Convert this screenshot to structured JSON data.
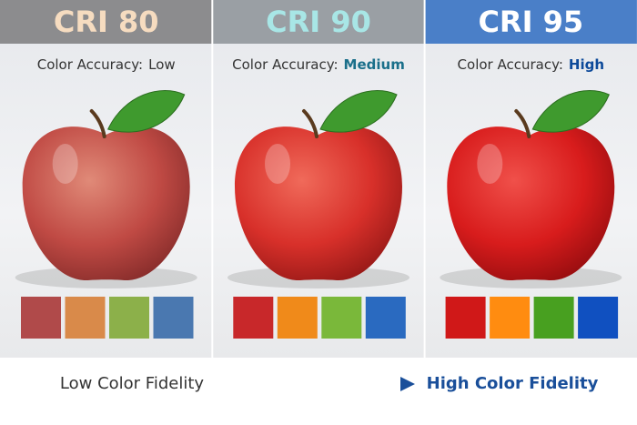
{
  "panels": [
    {
      "title": "CRI 80",
      "label": "Color Accuracy:",
      "level": "Low"
    },
    {
      "title": "CRI 90",
      "label": "Color Accuracy:",
      "level": "Medium"
    },
    {
      "title": "CRI 95",
      "label": "Color Accuracy:",
      "level": "High"
    }
  ],
  "footer": {
    "left": "Low Color Fidelity",
    "right": "High Color Fidelity"
  }
}
